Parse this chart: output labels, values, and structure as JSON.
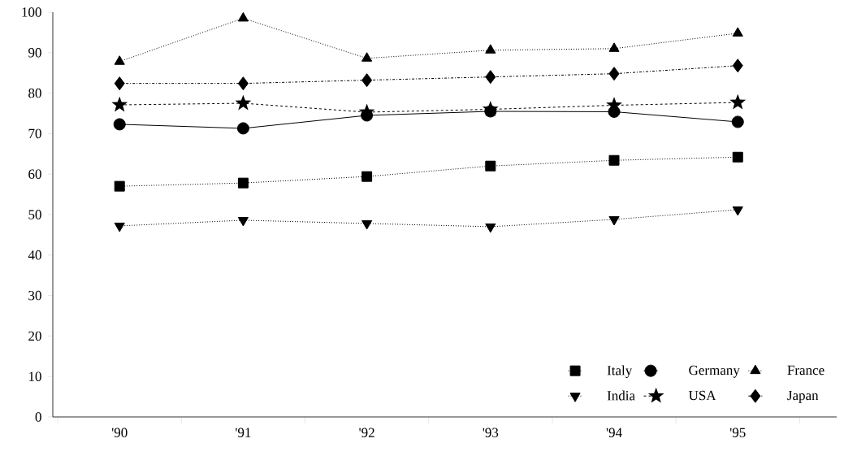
{
  "chart_data": {
    "type": "line",
    "categories": [
      "'90",
      "'91",
      "'92",
      "'93",
      "'94",
      "'95"
    ],
    "series": [
      {
        "name": "Italy",
        "color": "#000000",
        "marker": "square",
        "line_style": "dotted",
        "values": [
          57,
          57.8,
          59.4,
          62,
          63.4,
          64.2
        ]
      },
      {
        "name": "Germany",
        "color": "#000000",
        "marker": "circle",
        "line_style": "solid",
        "values": [
          72.3,
          71.3,
          74.5,
          75.5,
          75.4,
          72.9
        ]
      },
      {
        "name": "France",
        "color": "#000000",
        "marker": "triangle",
        "line_style": "dotted",
        "values": [
          87.8,
          98.5,
          88.6,
          90.6,
          91,
          94.8
        ]
      },
      {
        "name": "India",
        "color": "#000000",
        "marker": "triangle-down",
        "line_style": "dotted",
        "values": [
          47.2,
          48.6,
          47.8,
          47,
          48.8,
          51.2
        ]
      },
      {
        "name": "USA",
        "color": "#000000",
        "marker": "star",
        "line_style": "dashed",
        "values": [
          77.1,
          77.5,
          75.3,
          76,
          77,
          77.7
        ]
      },
      {
        "name": "Japan",
        "color": "#000000",
        "marker": "diamond",
        "line_style": "dashdot",
        "values": [
          82.4,
          82.4,
          83.2,
          84,
          84.8,
          86.8
        ]
      }
    ],
    "ylim": [
      0,
      100
    ],
    "yticks": [
      0,
      10,
      20,
      30,
      40,
      50,
      60,
      70,
      80,
      90,
      100
    ],
    "grid": false,
    "legend": "bottom right"
  }
}
